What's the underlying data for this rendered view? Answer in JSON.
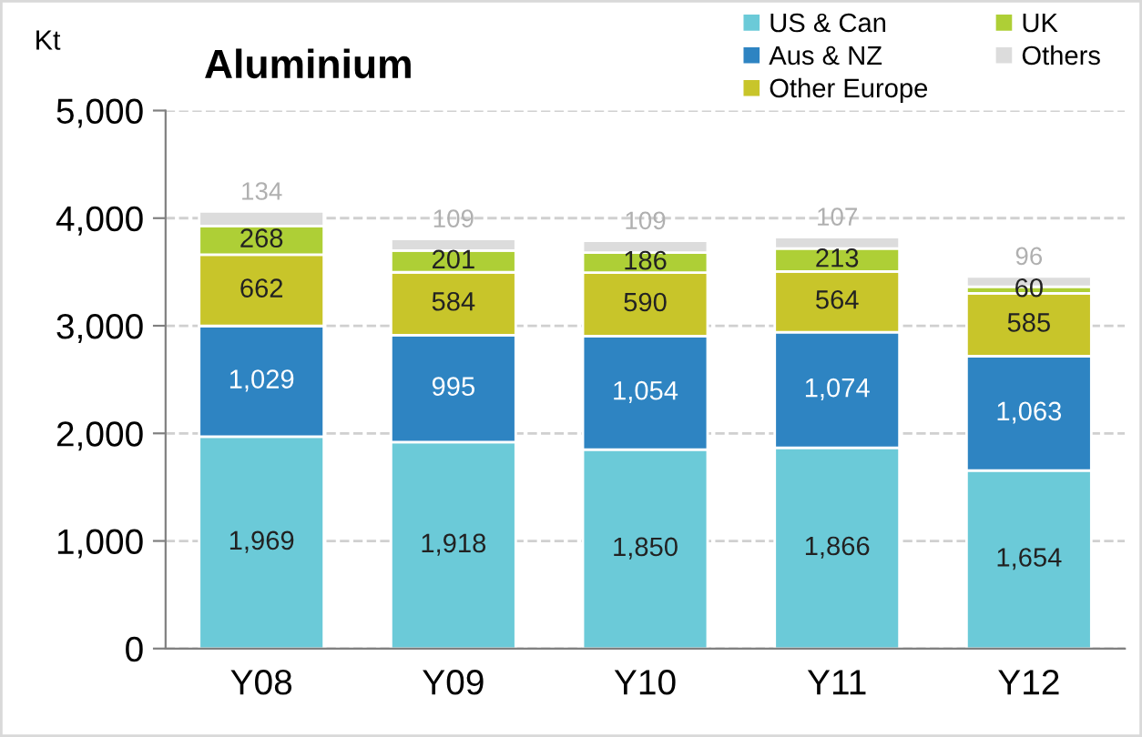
{
  "chart_data": {
    "type": "bar",
    "stacked": true,
    "title": "Aluminium",
    "ylabel": "Kt",
    "categories": [
      "Y08",
      "Y09",
      "Y10",
      "Y11",
      "Y12"
    ],
    "series": [
      {
        "name": "US & Can",
        "color": "#6bcad8",
        "values": [
          1969,
          1918,
          1850,
          1866,
          1654
        ],
        "value_labels": [
          "1,969",
          "1,918",
          "1,850",
          "1,866",
          "1,654"
        ]
      },
      {
        "name": "Aus & NZ",
        "color": "#2e84c2",
        "values": [
          1029,
          995,
          1054,
          1074,
          1063
        ],
        "value_labels": [
          "1,029",
          "995",
          "1,054",
          "1,074",
          "1,063"
        ]
      },
      {
        "name": "Other Europe",
        "color": "#c8c52a",
        "values": [
          662,
          584,
          590,
          564,
          585
        ],
        "value_labels": [
          "662",
          "584",
          "590",
          "564",
          "585"
        ]
      },
      {
        "name": "UK",
        "color": "#aecf36",
        "values": [
          268,
          201,
          186,
          213,
          60
        ],
        "value_labels": [
          "268",
          "201",
          "186",
          "213",
          "60"
        ]
      },
      {
        "name": "Others",
        "color": "#dcdcdc",
        "values": [
          134,
          109,
          109,
          107,
          96
        ],
        "value_labels": [
          "134",
          "109",
          "109",
          "107",
          "96"
        ]
      }
    ],
    "ylim": [
      0,
      5000
    ],
    "yticks": [
      {
        "value": 0,
        "label": "0"
      },
      {
        "value": 1000,
        "label": "1,000"
      },
      {
        "value": 2000,
        "label": "2,000"
      },
      {
        "value": 3000,
        "label": "3,000"
      },
      {
        "value": 4000,
        "label": "4,000"
      },
      {
        "value": 5000,
        "label": "5,000"
      }
    ],
    "grid": "y",
    "legend": "top right"
  }
}
